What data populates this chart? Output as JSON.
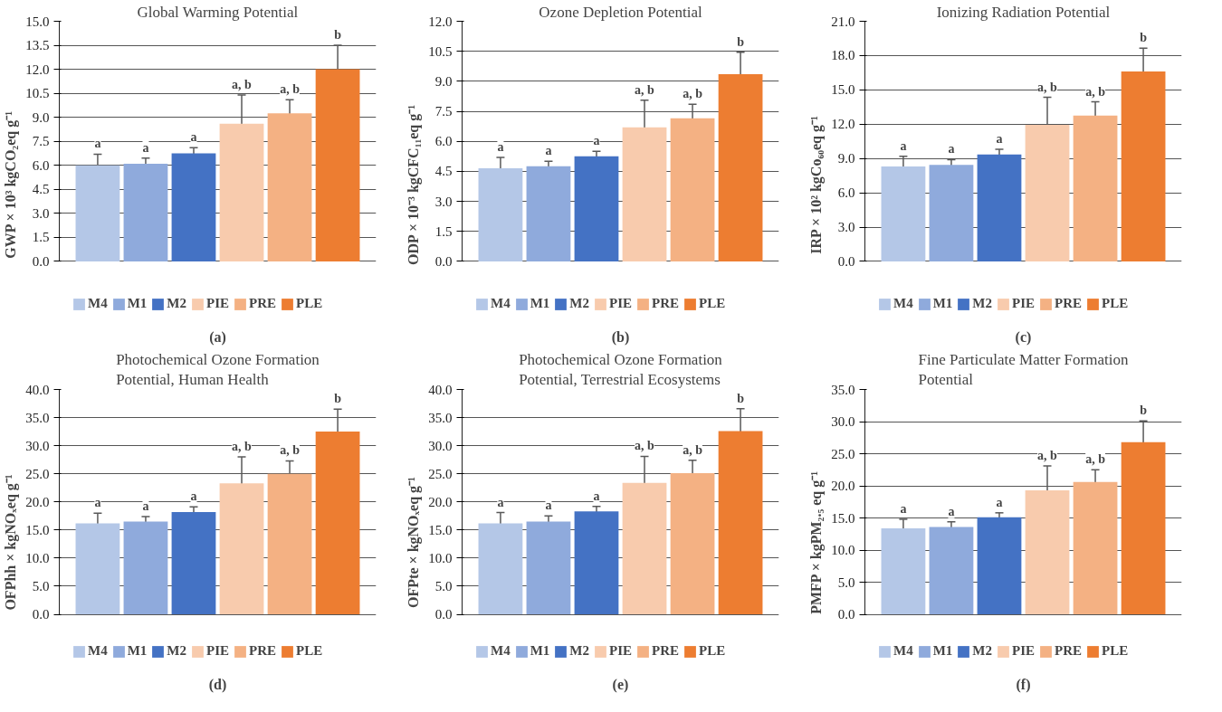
{
  "chart_data": [
    {
      "type": "bar",
      "title": "Global Warming Potential",
      "ylabel": "GWP × 10³ kgCO₂eq g⁻¹",
      "categories": [
        null
      ],
      "ylim": [
        0,
        15
      ],
      "yticks": [
        {
          "value": 0,
          "label": "0.0"
        },
        1.5,
        {
          "value": 3,
          "label": "3.0"
        },
        4.5,
        {
          "value": 6,
          "label": "6.0"
        },
        7.5,
        {
          "value": 9,
          "label": "9.0"
        },
        10.5,
        {
          "value": 12,
          "label": "12.0"
        },
        13.5,
        {
          "value": 15,
          "label": "15.0"
        }
      ],
      "grid": "y",
      "legend": "bottom",
      "annotations": [
        "(a)"
      ],
      "series": [
        {
          "name": "M4",
          "color": "#b4c7e7",
          "values": [
            6.0
          ],
          "errors": [
            0.7
          ],
          "value_labels": [
            "a"
          ]
        },
        {
          "name": "M1",
          "color": "#8faadc",
          "values": [
            6.1
          ],
          "errors": [
            0.35
          ],
          "value_labels": [
            "a"
          ]
        },
        {
          "name": "M2",
          "color": "#4472c4",
          "values": [
            6.75
          ],
          "errors": [
            0.35
          ],
          "value_labels": [
            "a"
          ]
        },
        {
          "name": "PIE",
          "color": "#f8cbad",
          "values": [
            8.6
          ],
          "errors": [
            1.8
          ],
          "value_labels": [
            "a, b"
          ]
        },
        {
          "name": "PRE",
          "color": "#f4b183",
          "values": [
            9.25
          ],
          "errors": [
            0.85
          ],
          "value_labels": [
            "a, b"
          ]
        },
        {
          "name": "PLE",
          "color": "#ed7d31",
          "values": [
            12.0
          ],
          "errors": [
            1.5
          ],
          "value_labels": [
            "b"
          ]
        }
      ]
    },
    {
      "type": "bar",
      "title": "Ozone Depletion Potential",
      "ylabel": "ODP × 10⁻³ kgCFC₁₁eq g⁻¹",
      "categories": [
        null
      ],
      "ylim": [
        0,
        12
      ],
      "yticks": [
        {
          "value": 0,
          "label": "0.0"
        },
        1.5,
        {
          "value": 3,
          "label": "3.0"
        },
        4.5,
        {
          "value": 6,
          "label": "6.0"
        },
        7.5,
        {
          "value": 9,
          "label": "9.0"
        },
        10.5,
        {
          "value": 12,
          "label": "12.0"
        }
      ],
      "grid": "y",
      "legend": "bottom",
      "annotations": [
        "(b)"
      ],
      "series": [
        {
          "name": "M4",
          "color": "#b4c7e7",
          "values": [
            4.65
          ],
          "errors": [
            0.55
          ],
          "value_labels": [
            "a"
          ]
        },
        {
          "name": "M1",
          "color": "#8faadc",
          "values": [
            4.75
          ],
          "errors": [
            0.25
          ],
          "value_labels": [
            "a"
          ]
        },
        {
          "name": "M2",
          "color": "#4472c4",
          "values": [
            5.25
          ],
          "errors": [
            0.25
          ],
          "value_labels": [
            "a"
          ]
        },
        {
          "name": "PIE",
          "color": "#f8cbad",
          "values": [
            6.7
          ],
          "errors": [
            1.35
          ],
          "value_labels": [
            "a, b"
          ]
        },
        {
          "name": "PRE",
          "color": "#f4b183",
          "values": [
            7.15
          ],
          "errors": [
            0.7
          ],
          "value_labels": [
            "a, b"
          ]
        },
        {
          "name": "PLE",
          "color": "#ed7d31",
          "values": [
            9.35
          ],
          "errors": [
            1.1
          ],
          "value_labels": [
            "b"
          ]
        }
      ]
    },
    {
      "type": "bar",
      "title": "Ionizing Radiation Potential",
      "ylabel": "IRP × 10² kgCo₆₀eq g⁻¹",
      "categories": [
        null
      ],
      "ylim": [
        0,
        21
      ],
      "yticks": [
        {
          "value": 0,
          "label": "0.0"
        },
        {
          "value": 3,
          "label": "3.0"
        },
        {
          "value": 6,
          "label": "6.0"
        },
        {
          "value": 9,
          "label": "9.0"
        },
        {
          "value": 12,
          "label": "12.0"
        },
        {
          "value": 15,
          "label": "15.0"
        },
        {
          "value": 18,
          "label": "18.0"
        },
        {
          "value": 21,
          "label": "21.0"
        }
      ],
      "grid": "y",
      "legend": "bottom",
      "annotations": [
        "(c)"
      ],
      "series": [
        {
          "name": "M4",
          "color": "#b4c7e7",
          "values": [
            8.3
          ],
          "errors": [
            0.9
          ],
          "value_labels": [
            "a"
          ]
        },
        {
          "name": "M1",
          "color": "#8faadc",
          "values": [
            8.45
          ],
          "errors": [
            0.45
          ],
          "value_labels": [
            "a"
          ]
        },
        {
          "name": "M2",
          "color": "#4472c4",
          "values": [
            9.35
          ],
          "errors": [
            0.45
          ],
          "value_labels": [
            "a"
          ]
        },
        {
          "name": "PIE",
          "color": "#f8cbad",
          "values": [
            11.95
          ],
          "errors": [
            2.4
          ],
          "value_labels": [
            "a, b"
          ]
        },
        {
          "name": "PRE",
          "color": "#f4b183",
          "values": [
            12.75
          ],
          "errors": [
            1.2
          ],
          "value_labels": [
            "a, b"
          ]
        },
        {
          "name": "PLE",
          "color": "#ed7d31",
          "values": [
            16.6
          ],
          "errors": [
            2.05
          ],
          "value_labels": [
            "b"
          ]
        }
      ]
    },
    {
      "type": "bar",
      "title": "Photochemical Ozone Formation Potential, Human Health",
      "ylabel": "OFPhh × kgNOₓeq g⁻¹",
      "categories": [
        null
      ],
      "ylim": [
        0,
        40
      ],
      "yticks": [
        {
          "value": 0,
          "label": "0.0"
        },
        {
          "value": 5,
          "label": "5.0"
        },
        {
          "value": 10,
          "label": "10.0"
        },
        {
          "value": 15,
          "label": "15.0"
        },
        {
          "value": 20,
          "label": "20.0"
        },
        {
          "value": 25,
          "label": "25.0"
        },
        {
          "value": 30,
          "label": "30.0"
        },
        {
          "value": 35,
          "label": "35.0"
        },
        {
          "value": 40,
          "label": "40.0"
        }
      ],
      "grid": "y",
      "legend": "bottom",
      "annotations": [
        "(d)"
      ],
      "series": [
        {
          "name": "M4",
          "color": "#b4c7e7",
          "values": [
            16.2
          ],
          "errors": [
            1.8
          ],
          "value_labels": [
            "a"
          ]
        },
        {
          "name": "M1",
          "color": "#8faadc",
          "values": [
            16.5
          ],
          "errors": [
            0.9
          ],
          "value_labels": [
            "a"
          ]
        },
        {
          "name": "M2",
          "color": "#4472c4",
          "values": [
            18.2
          ],
          "errors": [
            0.9
          ],
          "value_labels": [
            "a"
          ]
        },
        {
          "name": "PIE",
          "color": "#f8cbad",
          "values": [
            23.3
          ],
          "errors": [
            4.7
          ],
          "value_labels": [
            "a, b"
          ]
        },
        {
          "name": "PRE",
          "color": "#f4b183",
          "values": [
            25.0
          ],
          "errors": [
            2.3
          ],
          "value_labels": [
            "a, b"
          ]
        },
        {
          "name": "PLE",
          "color": "#ed7d31",
          "values": [
            32.5
          ],
          "errors": [
            4.0
          ],
          "value_labels": [
            "b"
          ]
        }
      ]
    },
    {
      "type": "bar",
      "title": "Photochemical Ozone Formation Potential, Terrestrial Ecosystems",
      "ylabel": "OFPte × kgNOₓeq g⁻¹",
      "categories": [
        null
      ],
      "ylim": [
        0,
        40
      ],
      "yticks": [
        {
          "value": 0,
          "label": "0.0"
        },
        {
          "value": 5,
          "label": "5.0"
        },
        {
          "value": 10,
          "label": "10.0"
        },
        {
          "value": 15,
          "label": "15.0"
        },
        {
          "value": 20,
          "label": "20.0"
        },
        {
          "value": 25,
          "label": "25.0"
        },
        {
          "value": 30,
          "label": "30.0"
        },
        {
          "value": 35,
          "label": "35.0"
        },
        {
          "value": 40,
          "label": "40.0"
        }
      ],
      "grid": "y",
      "legend": "bottom",
      "annotations": [
        "(e)"
      ],
      "series": [
        {
          "name": "M4",
          "color": "#b4c7e7",
          "values": [
            16.2
          ],
          "errors": [
            1.9
          ],
          "value_labels": [
            "a"
          ]
        },
        {
          "name": "M1",
          "color": "#8faadc",
          "values": [
            16.5
          ],
          "errors": [
            1.0
          ],
          "value_labels": [
            "a"
          ]
        },
        {
          "name": "M2",
          "color": "#4472c4",
          "values": [
            18.3
          ],
          "errors": [
            0.9
          ],
          "value_labels": [
            "a"
          ]
        },
        {
          "name": "PIE",
          "color": "#f8cbad",
          "values": [
            23.4
          ],
          "errors": [
            4.7
          ],
          "value_labels": [
            "a, b"
          ]
        },
        {
          "name": "PRE",
          "color": "#f4b183",
          "values": [
            25.1
          ],
          "errors": [
            2.3
          ],
          "value_labels": [
            "a, b"
          ]
        },
        {
          "name": "PLE",
          "color": "#ed7d31",
          "values": [
            32.6
          ],
          "errors": [
            4.0
          ],
          "value_labels": [
            "b"
          ]
        }
      ]
    },
    {
      "type": "bar",
      "title": "Fine Particulate Matter Formation Potential",
      "ylabel": "PMFP × kgPM₂.₅ eq g⁻¹",
      "categories": [
        null
      ],
      "ylim": [
        0,
        35
      ],
      "yticks": [
        {
          "value": 0,
          "label": "0.0"
        },
        {
          "value": 5,
          "label": "5.0"
        },
        {
          "value": 10,
          "label": "10.0"
        },
        {
          "value": 15,
          "label": "15.0"
        },
        {
          "value": 20,
          "label": "20.0"
        },
        {
          "value": 25,
          "label": "25.0"
        },
        {
          "value": 30,
          "label": "30.0"
        },
        {
          "value": 35,
          "label": "35.0"
        }
      ],
      "grid": "y",
      "legend": "bottom",
      "annotations": [
        "(f)"
      ],
      "series": [
        {
          "name": "M4",
          "color": "#b4c7e7",
          "values": [
            13.4
          ],
          "errors": [
            1.4
          ],
          "value_labels": [
            "a"
          ]
        },
        {
          "name": "M1",
          "color": "#8faadc",
          "values": [
            13.6
          ],
          "errors": [
            0.8
          ],
          "value_labels": [
            "a"
          ]
        },
        {
          "name": "M2",
          "color": "#4472c4",
          "values": [
            15.1
          ],
          "errors": [
            0.7
          ],
          "value_labels": [
            "a"
          ]
        },
        {
          "name": "PIE",
          "color": "#f8cbad",
          "values": [
            19.3
          ],
          "errors": [
            3.8
          ],
          "value_labels": [
            "a, b"
          ]
        },
        {
          "name": "PRE",
          "color": "#f4b183",
          "values": [
            20.6
          ],
          "errors": [
            1.9
          ],
          "value_labels": [
            "a, b"
          ]
        },
        {
          "name": "PLE",
          "color": "#ed7d31",
          "values": [
            26.8
          ],
          "errors": [
            3.3
          ],
          "value_labels": [
            "b"
          ]
        }
      ]
    }
  ]
}
